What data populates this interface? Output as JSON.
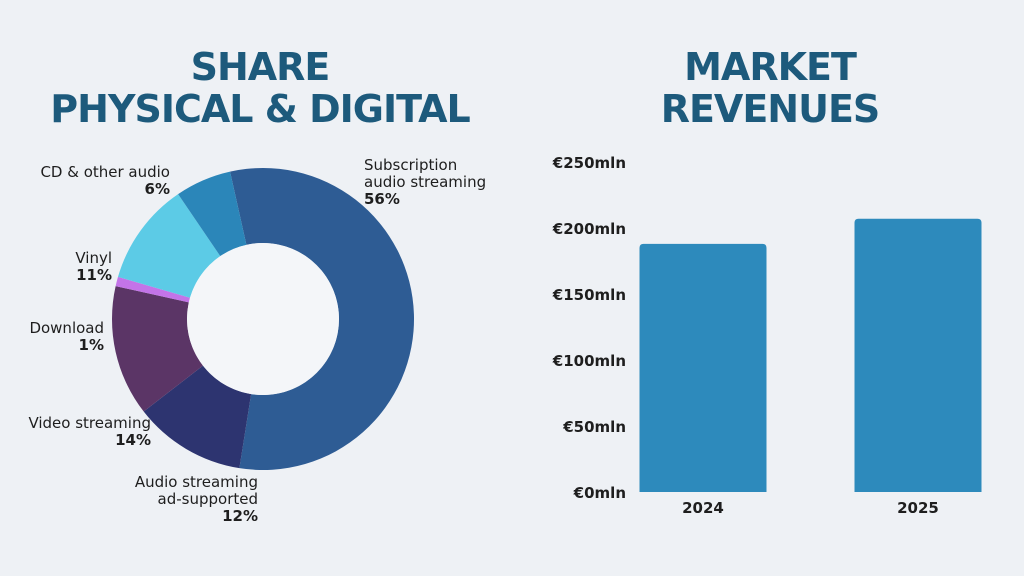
{
  "titles": {
    "share": "SHARE\nPHYSICAL & DIGITAL",
    "revenues": "MARKET\nREVENUES"
  },
  "colors": {
    "title": "#1d5a7c",
    "bar": "#2d8abc",
    "background": "#eef1f5"
  },
  "chart_data": [
    {
      "type": "pie",
      "donut": true,
      "title": "SHARE PHYSICAL & DIGITAL",
      "categories": [
        "Subscription audio streaming",
        "Audio streaming ad-supported",
        "Video streaming",
        "Download",
        "Vinyl",
        "CD & other audio"
      ],
      "labels": [
        "Subscription\naudio streaming",
        "Audio streaming\nad-supported",
        "Video streaming",
        "Download",
        "Vinyl",
        "CD & other audio"
      ],
      "values": [
        56,
        12,
        14,
        1,
        11,
        6
      ],
      "value_labels": [
        "56%",
        "12%",
        "14%",
        "1%",
        "11%",
        "6%"
      ],
      "colors": [
        "#2e5c94",
        "#2d3470",
        "#5b3566",
        "#c374e8",
        "#5ccbe6",
        "#2b86b9"
      ],
      "legend": "none"
    },
    {
      "type": "bar",
      "title": "MARKET REVENUES",
      "categories": [
        "2024",
        "2025"
      ],
      "values": [
        188,
        207
      ],
      "ylim": [
        0,
        250
      ],
      "yticks": [
        0,
        50,
        100,
        150,
        200,
        250
      ],
      "ytick_labels": [
        "€0mln",
        "€50mln",
        "€100mln",
        "€150mln",
        "€200mln",
        "€250mln"
      ],
      "grid": false,
      "color": "#2d8abc"
    }
  ]
}
